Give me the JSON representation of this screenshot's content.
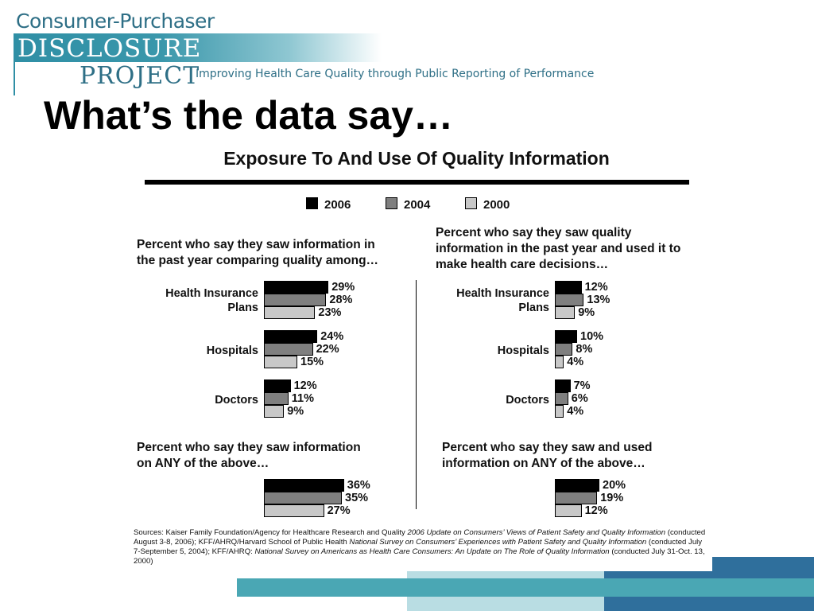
{
  "header": {
    "logo_line1": "Consumer-Purchaser",
    "logo_line2": "DISCLOSURE",
    "logo_line3": "PROJECT",
    "tagline": "Improving Health Care Quality through Public Reporting of Performance"
  },
  "slide_title": "What’s the data say…",
  "colors": {
    "brand_teal": "#2f8fa5",
    "c2006": "#000000",
    "c2004": "#7f7f7f",
    "c2000": "#c8c8c8"
  },
  "chart_data": {
    "type": "bar",
    "title": "Exposure To And Use Of Quality Information",
    "legend": [
      "2006",
      "2004",
      "2000"
    ],
    "panels": [
      {
        "question": [
          "Percent who say they saw information in",
          "the past year comparing quality among…"
        ],
        "categories": [
          [
            "Health Insurance",
            "Plans"
          ],
          [
            "Hospitals"
          ],
          [
            "Doctors"
          ]
        ],
        "series": [
          {
            "name": "2006",
            "values": [
              29,
              24,
              12
            ]
          },
          {
            "name": "2004",
            "values": [
              28,
              22,
              11
            ]
          },
          {
            "name": "2000",
            "values": [
              23,
              15,
              9
            ]
          }
        ],
        "any_question": [
          "Percent who say they saw information",
          "on ANY of the above…"
        ],
        "any_values": [
          36,
          35,
          27
        ]
      },
      {
        "question": [
          "Percent who say they saw quality",
          "information in the past year and used it to",
          "make health care decisions…"
        ],
        "categories": [
          [
            "Health Insurance",
            "Plans"
          ],
          [
            "Hospitals"
          ],
          [
            "Doctors"
          ]
        ],
        "series": [
          {
            "name": "2006",
            "values": [
              12,
              10,
              7
            ]
          },
          {
            "name": "2004",
            "values": [
              13,
              8,
              6
            ]
          },
          {
            "name": "2000",
            "values": [
              9,
              4,
              4
            ]
          }
        ],
        "any_question": [
          "Percent who say they saw and used",
          "information on ANY of the above…"
        ],
        "any_values": [
          20,
          19,
          12
        ]
      }
    ]
  },
  "sources": {
    "s1": "Sources: Kaiser Family Foundation/Agency for Healthcare Research and Quality ",
    "s2": "2006 Update on Consumers’ Views of Patient Safety and Quality Information",
    "s3": " (conducted August 3-8, 2006); KFF/AHRQ/Harvard School of Public Health ",
    "s4": "National Survey on Consumers’ Experiences with Patient Safety and Quality Information",
    "s5": " (conducted July 7-September 5, 2004); KFF/AHRQ: ",
    "s6": "National Survey on Americans as Health Care Consumers:  An Update on The Role of Quality Information",
    "s7": " (conducted July 31-Oct. 13, 2000)"
  }
}
